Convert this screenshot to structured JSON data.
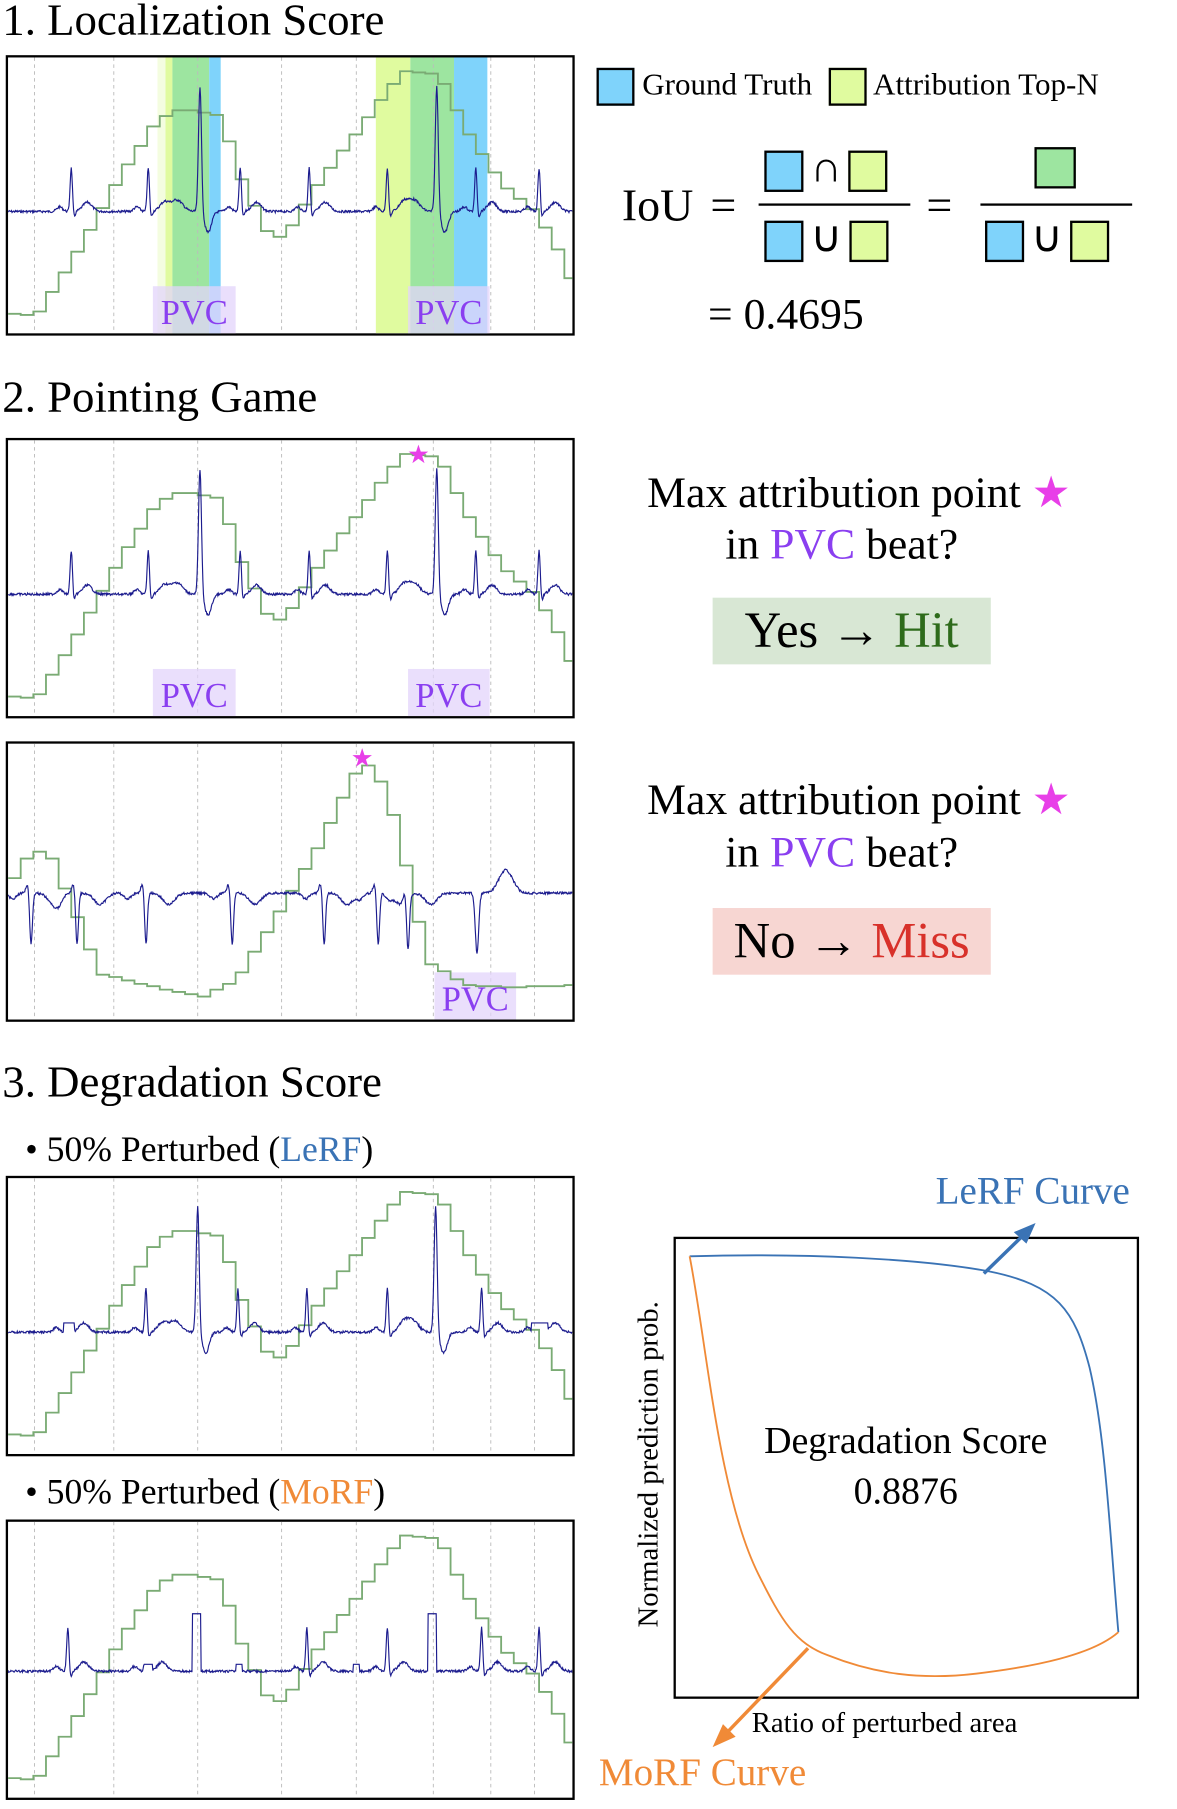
{
  "colors": {
    "ground_truth": "#7fd3fb",
    "attribution": "#e0fb9f",
    "intersection": "#9de5a0",
    "ecg": "#1c1c8e",
    "attr_curve": "#7aab74",
    "pvc_text": "#8a3ff0",
    "pvc_box": "#e3d4fb",
    "star": "#e83fe8",
    "hit_bg": "#d8e7d4",
    "hit_text": "#2e6b1b",
    "miss_bg": "#f7d6d2",
    "miss_text": "#d8312a",
    "lerf": "#3a73b5",
    "morf": "#f08a37"
  },
  "section1": {
    "title": "1. Localization Score",
    "pvc_labels": [
      "PVC",
      "PVC"
    ],
    "legend": [
      {
        "label": "Ground Truth",
        "icon": "blue-square"
      },
      {
        "label": "Attribution Top-N",
        "icon": "yellow-square"
      }
    ],
    "iou": {
      "lhs": "IoU",
      "eq": "=",
      "intersect": "∩",
      "union": "∪",
      "result": "= 0.4695"
    }
  },
  "section2": {
    "title": "2. Pointing Game",
    "cases": [
      {
        "pvc_labels": [
          "PVC",
          "PVC"
        ],
        "q1": "Max attribution point",
        "q2_pre": "in ",
        "q2_pvc": "PVC",
        "q2_post": " beat?",
        "answer": "Yes",
        "arrow": "→",
        "outcome": "Hit"
      },
      {
        "pvc_labels": [
          "PVC"
        ],
        "q1": "Max attribution point",
        "q2_pre": "in ",
        "q2_pvc": "PVC",
        "q2_post": " beat?",
        "answer": "No",
        "arrow": "→",
        "outcome": "Miss"
      }
    ],
    "star_icon": "star"
  },
  "section3": {
    "title": "3. Degradation Score",
    "lerf_label": {
      "pre": "• 50% Perturbed (",
      "name": "LeRF",
      "post": ")"
    },
    "morf_label": {
      "pre": "• 50% Perturbed (",
      "name": "MoRF",
      "post": ")"
    },
    "plot": {
      "score_label": "Degradation Score",
      "score": "0.8876",
      "ylabel": "Normalized prediction prob.",
      "xlabel": "Ratio of perturbed area",
      "lerf_curve": "LeRF Curve",
      "morf_curve": "MoRF Curve"
    }
  }
}
